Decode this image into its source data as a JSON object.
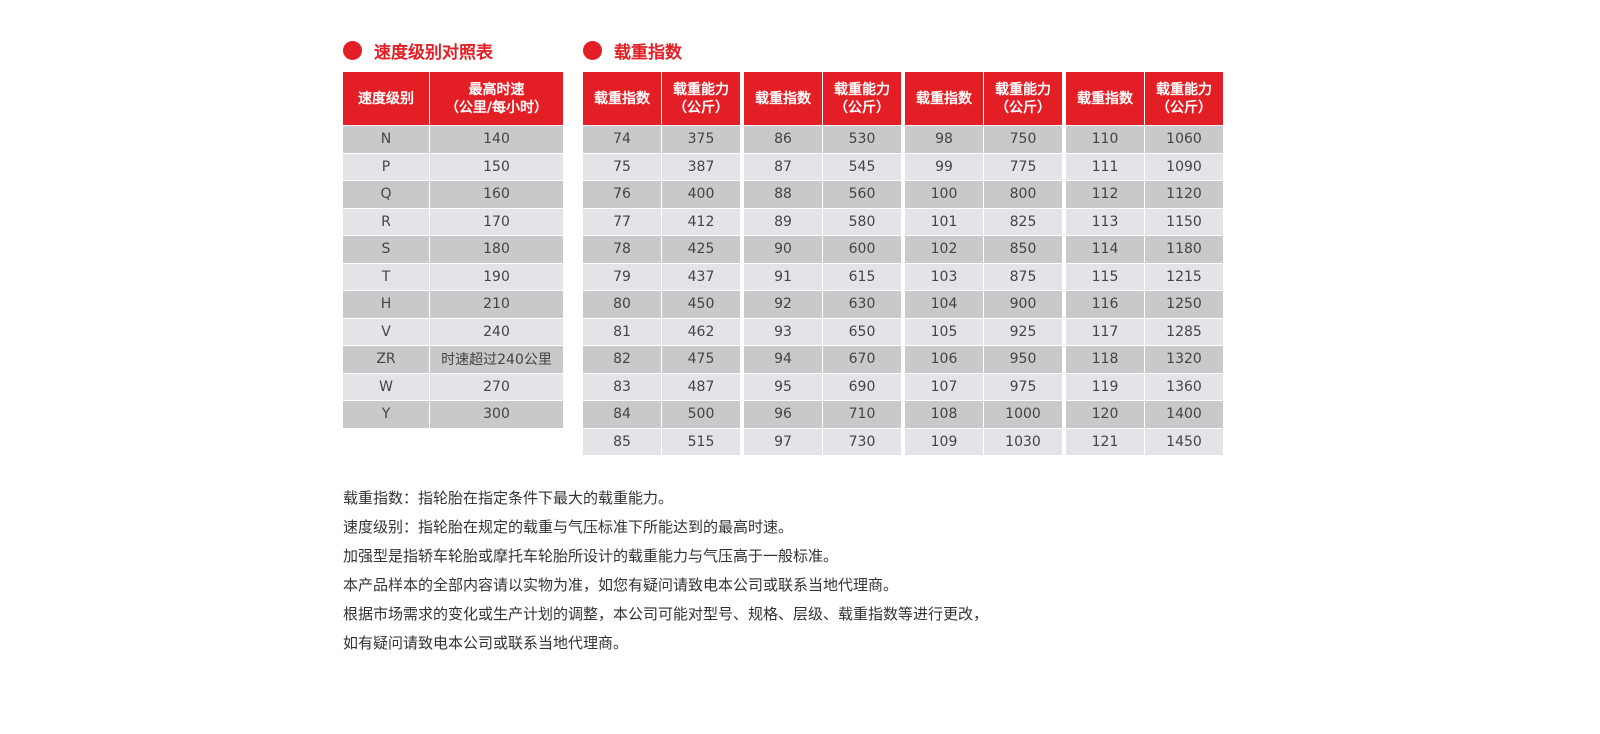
{
  "speed": {
    "title": "速度级别对照表",
    "headers": [
      "速度级别",
      "最高时速\n（公里/每小时）"
    ],
    "rows": [
      [
        "N",
        "140"
      ],
      [
        "P",
        "150"
      ],
      [
        "Q",
        "160"
      ],
      [
        "R",
        "170"
      ],
      [
        "S",
        "180"
      ],
      [
        "T",
        "190"
      ],
      [
        "H",
        "210"
      ],
      [
        "V",
        "240"
      ],
      [
        "ZR",
        "时速超过240公里"
      ],
      [
        "W",
        "270"
      ],
      [
        "Y",
        "300"
      ]
    ]
  },
  "load": {
    "title": "载重指数",
    "headers": [
      "载重指数",
      "载重能力\n（公斤）"
    ],
    "groups": [
      [
        [
          "74",
          "375"
        ],
        [
          "75",
          "387"
        ],
        [
          "76",
          "400"
        ],
        [
          "77",
          "412"
        ],
        [
          "78",
          "425"
        ],
        [
          "79",
          "437"
        ],
        [
          "80",
          "450"
        ],
        [
          "81",
          "462"
        ],
        [
          "82",
          "475"
        ],
        [
          "83",
          "487"
        ],
        [
          "84",
          "500"
        ],
        [
          "85",
          "515"
        ]
      ],
      [
        [
          "86",
          "530"
        ],
        [
          "87",
          "545"
        ],
        [
          "88",
          "560"
        ],
        [
          "89",
          "580"
        ],
        [
          "90",
          "600"
        ],
        [
          "91",
          "615"
        ],
        [
          "92",
          "630"
        ],
        [
          "93",
          "650"
        ],
        [
          "94",
          "670"
        ],
        [
          "95",
          "690"
        ],
        [
          "96",
          "710"
        ],
        [
          "97",
          "730"
        ]
      ],
      [
        [
          "98",
          "750"
        ],
        [
          "99",
          "775"
        ],
        [
          "100",
          "800"
        ],
        [
          "101",
          "825"
        ],
        [
          "102",
          "850"
        ],
        [
          "103",
          "875"
        ],
        [
          "104",
          "900"
        ],
        [
          "105",
          "925"
        ],
        [
          "106",
          "950"
        ],
        [
          "107",
          "975"
        ],
        [
          "108",
          "1000"
        ],
        [
          "109",
          "1030"
        ]
      ],
      [
        [
          "110",
          "1060"
        ],
        [
          "111",
          "1090"
        ],
        [
          "112",
          "1120"
        ],
        [
          "113",
          "1150"
        ],
        [
          "114",
          "1180"
        ],
        [
          "115",
          "1215"
        ],
        [
          "116",
          "1250"
        ],
        [
          "117",
          "1285"
        ],
        [
          "118",
          "1320"
        ],
        [
          "119",
          "1360"
        ],
        [
          "120",
          "1400"
        ],
        [
          "121",
          "1450"
        ]
      ]
    ]
  },
  "notes": [
    "载重指数：指轮胎在指定条件下最大的载重能力。",
    "速度级别：指轮胎在规定的载重与气压标准下所能达到的最高时速。",
    "加强型是指轿车轮胎或摩托车轮胎所设计的载重能力与气压高于一般标准。",
    "本产品样本的全部内容请以实物为准，如您有疑问请致电本公司或联系当地代理商。",
    "根据市场需求的变化或生产计划的调整，本公司可能对型号、规格、层级、载重指数等进行更改，",
    "如有疑问请致电本公司或联系当地代理商。"
  ],
  "colors": {
    "accent": "#e31e24",
    "row_dark": "#c9c9cc",
    "row_light": "#e4e4e8"
  }
}
